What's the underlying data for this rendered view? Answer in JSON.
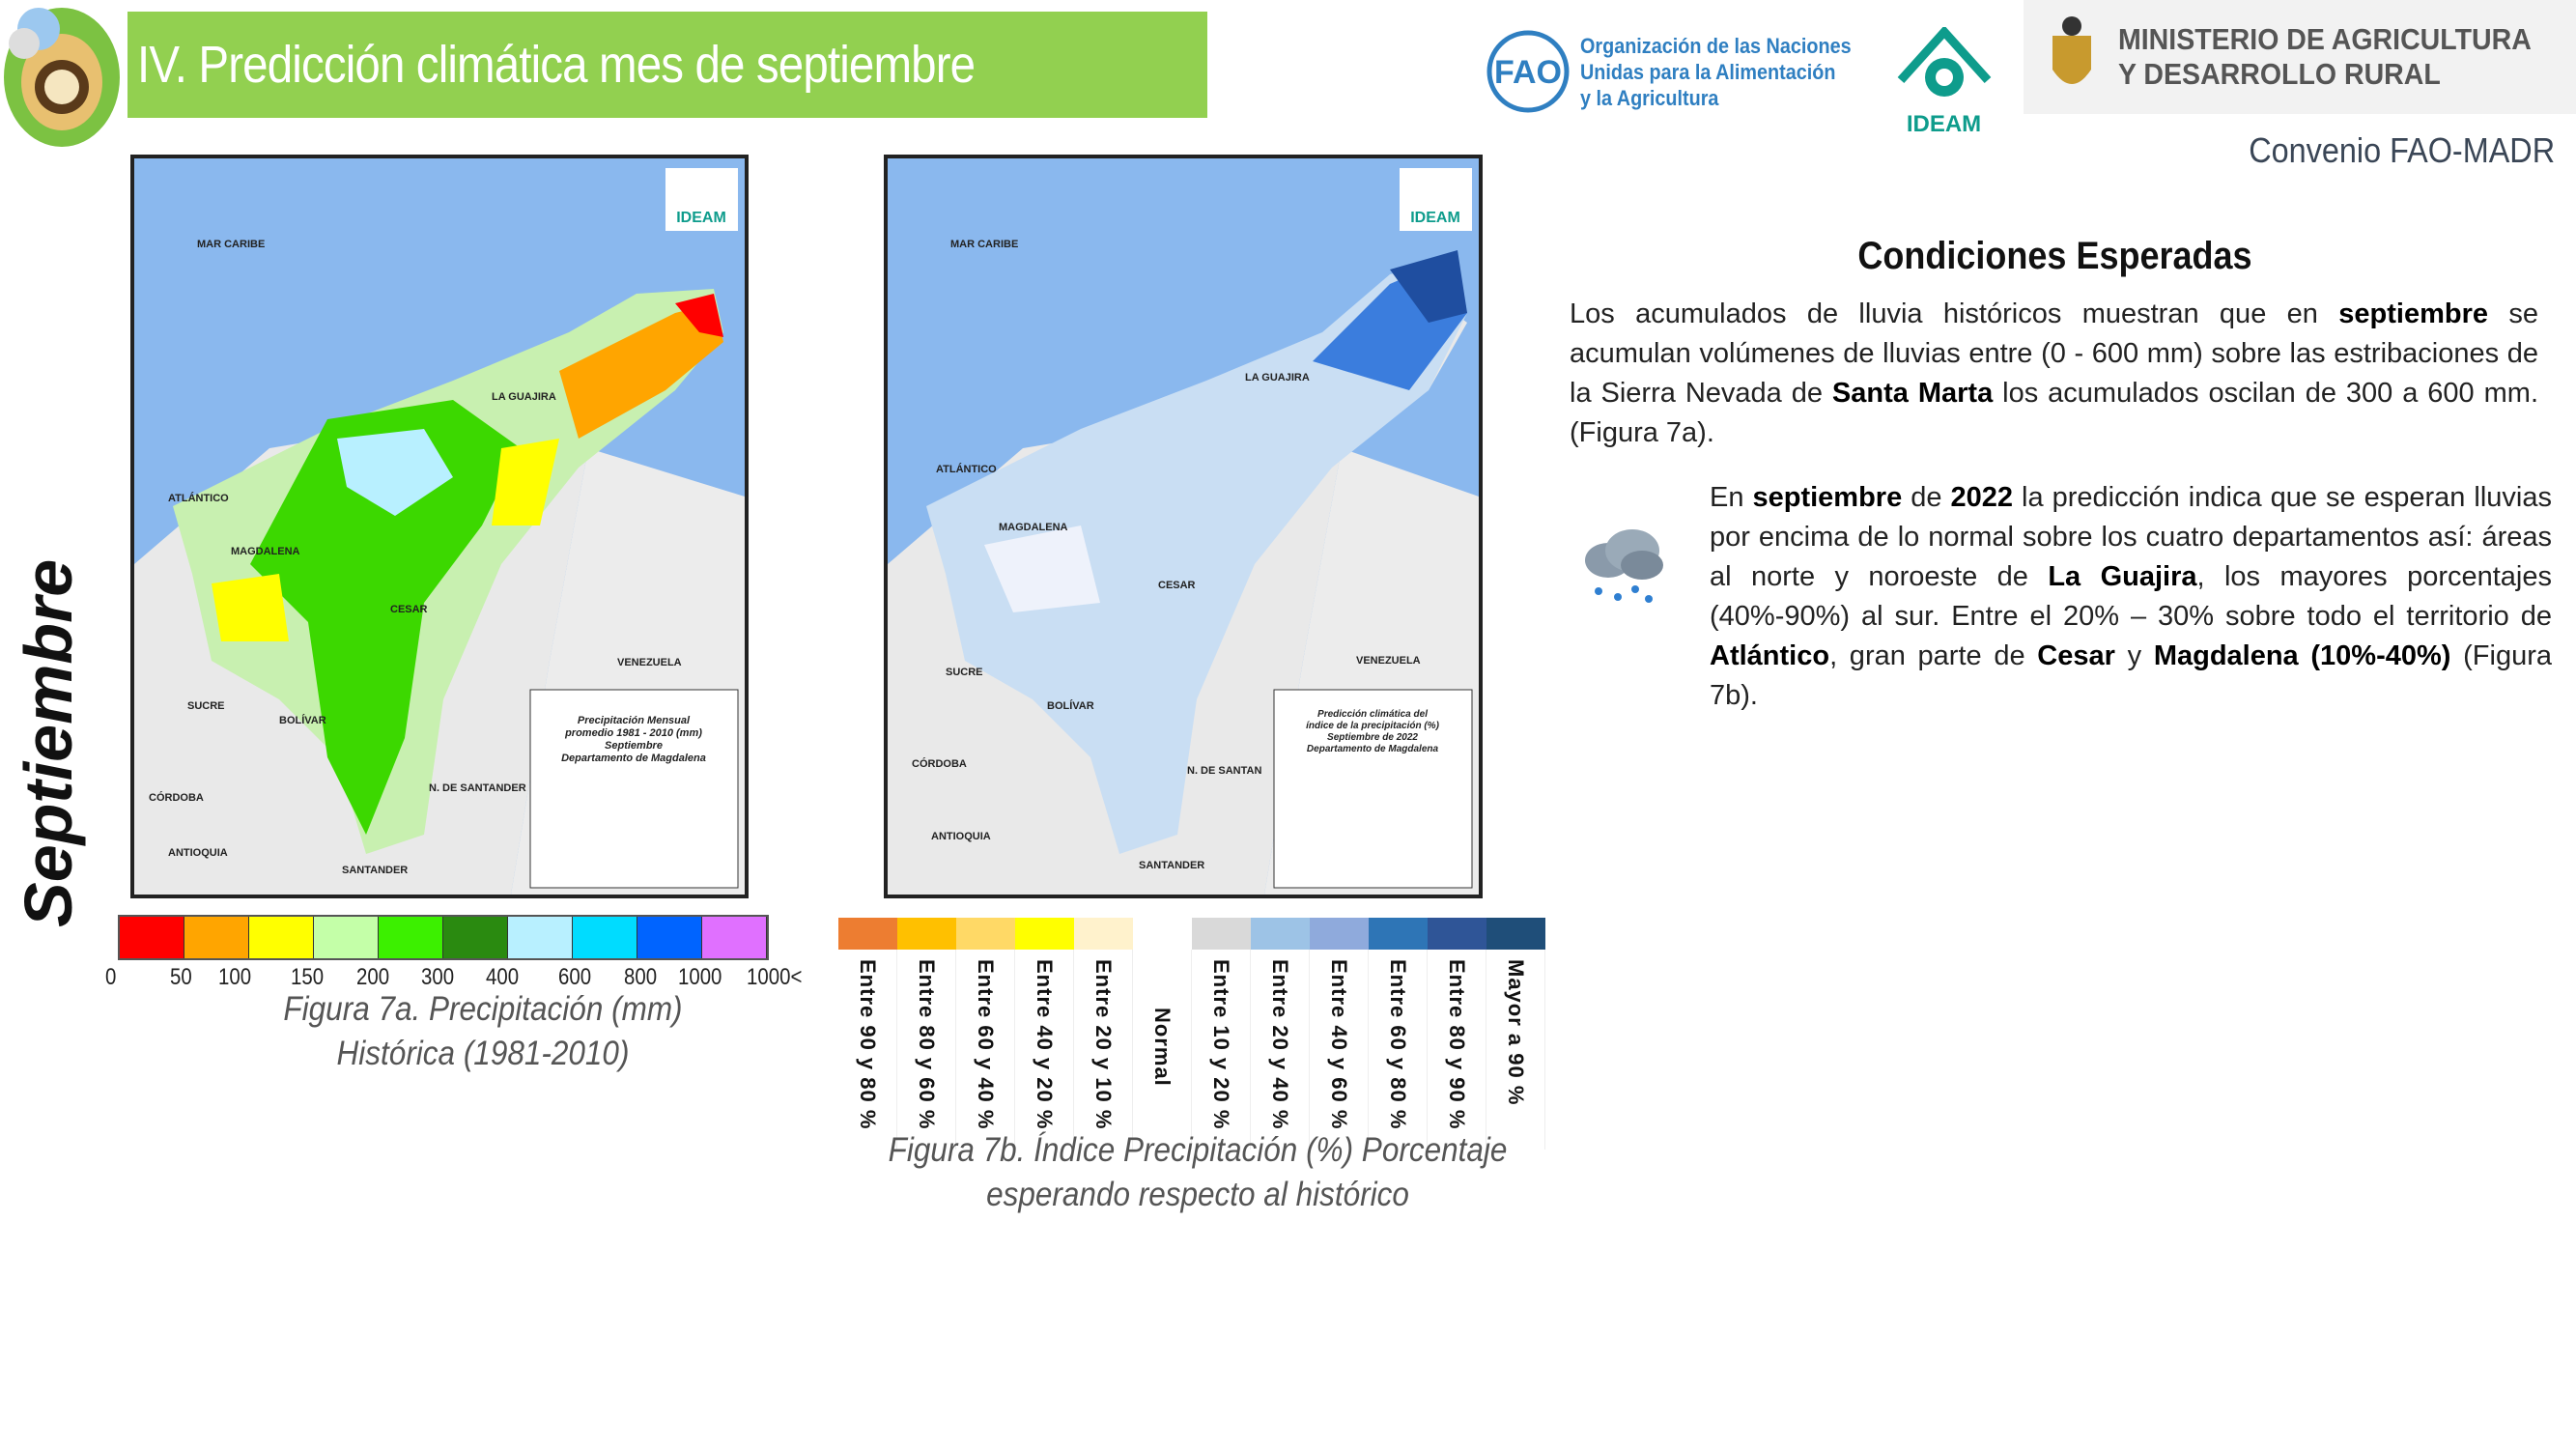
{
  "header": {
    "title": "IV. Predicción climática mes de septiembre",
    "fao_text": [
      "Organización de las Naciones",
      "Unidas para la Alimentación",
      "y la Agricultura"
    ],
    "ideam_label": "IDEAM",
    "ministry_text": [
      "MINISTERIO DE AGRICULTURA",
      "Y DESARROLLO RURAL"
    ],
    "convenio": "Convenio FAO-MADR"
  },
  "side_label": "Septiembre",
  "map_a": {
    "labels": [
      "MAR CARIBE",
      "LA GUAJIRA",
      "ATLÁNTICO",
      "MAGDALENA",
      "CESAR",
      "VENEZUELA",
      "SUCRE",
      "BOLÍVAR",
      "CÓRDOBA",
      "N. DE SANTANDER",
      "ANTIOQUIA",
      "SANTANDER"
    ],
    "legend_title": [
      "Precipitación Mensual",
      "promedio 1981 - 2010 (mm)",
      "Septiembre",
      "Departamento de Magdalena"
    ],
    "logo": "IDEAM"
  },
  "map_b": {
    "labels": [
      "MAR CARIBE",
      "LA GUAJIRA",
      "ATLÁNTICO",
      "MAGDALENA",
      "CESAR",
      "VENEZUELA",
      "SUCRE",
      "BOLÍVAR",
      "CÓRDOBA",
      "N. DE SANTAN",
      "ANTIOQUIA",
      "SANTANDER"
    ],
    "legend_title": [
      "Predicción climática del",
      "índice de la precipitación (%)",
      "Septiembre de 2022",
      "Departamento de Magdalena"
    ],
    "logo": "IDEAM"
  },
  "legend_a": {
    "colors": [
      "#ff0000",
      "#ffa500",
      "#ffff00",
      "#c4ffa8",
      "#3cf000",
      "#2a8a10",
      "#b8f0ff",
      "#00dcff",
      "#0064ff",
      "#e070ff"
    ],
    "ticks": [
      "0",
      "50",
      "100",
      "150",
      "200",
      "300",
      "400",
      "600",
      "800",
      "1000",
      "1000<"
    ],
    "caption": [
      "Figura 7a. Precipitación (mm)",
      "Histórica (1981-2010)"
    ]
  },
  "legend_b": {
    "items": [
      {
        "label": "Entre 90 y 80 %",
        "color": "#ed7d31"
      },
      {
        "label": "Entre 80 y 60 %",
        "color": "#ffc000"
      },
      {
        "label": "Entre 60 y 40 %",
        "color": "#ffd966"
      },
      {
        "label": "Entre 40 y 20 %",
        "color": "#ffff00"
      },
      {
        "label": "Entre 20 y 10 %",
        "color": "#fff2cc"
      },
      {
        "label": "Normal",
        "color": "#ffffff"
      },
      {
        "label": "Entre 10 y 20 %",
        "color": "#d9d9d9"
      },
      {
        "label": "Entre 20 y 40 %",
        "color": "#9dc3e6"
      },
      {
        "label": "Entre 40 y 60 %",
        "color": "#8faadc"
      },
      {
        "label": "Entre 60 y 80 %",
        "color": "#2e75b6"
      },
      {
        "label": "Entre 80 y 90 %",
        "color": "#2f5597"
      },
      {
        "label": "Mayor a 90 %",
        "color": "#1f4e79"
      }
    ],
    "caption": [
      "Figura 7b. Índice Precipitación (%)  Porcentaje",
      "esperando respecto al  histórico"
    ]
  },
  "conditions": {
    "title": "Condiciones Esperadas",
    "p1": [
      "Los acumulados de lluvia históricos muestran que en ",
      "septiembre",
      " se acumulan volúmenes de lluvias entre (0 - 600 mm) sobre las estribaciones de la Sierra Nevada de ",
      "Santa Marta",
      " los acumulados oscilan de 300 a 600 mm. (Figura 7a)."
    ],
    "p2": [
      "En ",
      "septiembre",
      " de ",
      "2022",
      " la predicción indica que se esperan lluvias por encima de lo normal sobre los cuatro departamentos así: áreas al norte y noroeste de ",
      "La Guajira",
      ", los mayores porcentajes (40%-90%) al sur. Entre el 20% – 30% sobre todo el territorio de ",
      "Atlántico",
      ", gran parte de ",
      "Cesar",
      " y ",
      "Magdalena (10%-40%)",
      " (Figura 7b)."
    ]
  }
}
